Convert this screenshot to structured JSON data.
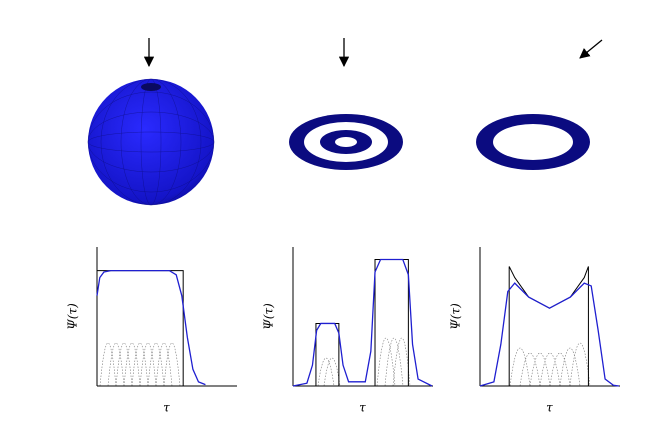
{
  "chart_data": [
    {
      "type": "line",
      "ylabel": "Ψ(τ)",
      "xlabel": "τ",
      "xlim": [
        0,
        10
      ],
      "ylim": [
        0,
        1
      ],
      "series": [
        {
          "color": "#000000",
          "x": [
            0,
            0,
            6.2,
            6.2
          ],
          "values": [
            0,
            0.83,
            0.83,
            0
          ]
        },
        {
          "color": "#1f1fd0",
          "x": [
            0,
            0.2,
            0.5,
            1,
            5.2,
            5.7,
            6.1,
            6.5,
            6.9,
            7.3,
            7.8
          ],
          "values": [
            0.65,
            0.78,
            0.82,
            0.83,
            0.83,
            0.8,
            0.65,
            0.35,
            0.12,
            0.03,
            0.01
          ]
        }
      ]
    },
    {
      "type": "line",
      "ylabel": "Ψ(τ)",
      "xlabel": "τ",
      "xlim": [
        0,
        10
      ],
      "ylim": [
        0,
        1
      ],
      "series": [
        {
          "color": "#000000",
          "x": [
            1.65,
            1.65,
            3.3,
            3.3,
            5.9,
            5.9,
            8.3,
            8.3
          ],
          "values": [
            0,
            0.45,
            0.45,
            0,
            0,
            0.91,
            0.91,
            0
          ]
        },
        {
          "color": "#1f1fd0",
          "x": [
            0,
            1,
            1.4,
            1.7,
            2,
            3,
            3.3,
            3.6,
            4,
            5.2,
            5.6,
            5.9,
            6.3,
            7.9,
            8.3,
            8.6,
            9,
            10
          ],
          "values": [
            0,
            0.02,
            0.15,
            0.4,
            0.45,
            0.45,
            0.38,
            0.15,
            0.03,
            0.03,
            0.25,
            0.82,
            0.91,
            0.91,
            0.8,
            0.3,
            0.05,
            0
          ]
        }
      ]
    },
    {
      "type": "line",
      "ylabel": "Ψ(τ)",
      "xlabel": "τ",
      "xlim": [
        0,
        10
      ],
      "ylim": [
        0,
        1
      ],
      "series": [
        {
          "color": "#000000",
          "x": [
            2.1,
            2.1,
            2.5,
            3.5,
            5,
            6.5,
            7.5,
            7.8,
            7.8
          ],
          "values": [
            0,
            0.86,
            0.78,
            0.64,
            0.56,
            0.64,
            0.78,
            0.86,
            0
          ]
        },
        {
          "color": "#1f1fd0",
          "x": [
            0,
            1,
            1.5,
            2,
            2.5,
            3.5,
            5,
            6.5,
            7.5,
            8,
            8.5,
            9,
            9.6,
            10
          ],
          "values": [
            0,
            0.03,
            0.3,
            0.68,
            0.74,
            0.64,
            0.56,
            0.64,
            0.74,
            0.72,
            0.4,
            0.05,
            0.005,
            0
          ]
        }
      ]
    }
  ]
}
